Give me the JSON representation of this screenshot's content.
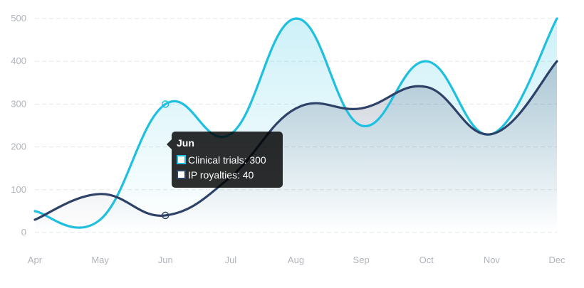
{
  "chart_data": {
    "type": "line",
    "categories": [
      "Apr",
      "May",
      "Jun",
      "Jul",
      "Aug",
      "Sep",
      "Oct",
      "Nov",
      "Dec"
    ],
    "series": [
      {
        "name": "Clinical trials",
        "values": [
          50,
          30,
          300,
          230,
          500,
          250,
          400,
          230,
          500
        ],
        "color": "#1fbfe0"
      },
      {
        "name": "IP royalties",
        "values": [
          30,
          90,
          40,
          130,
          290,
          290,
          340,
          230,
          400
        ],
        "color": "#2e4268"
      }
    ],
    "ylim": [
      0,
      500
    ],
    "yticks": [
      "0",
      "100",
      "200",
      "300",
      "400",
      "500"
    ],
    "grid": true,
    "title": "",
    "xlabel": "",
    "ylabel": ""
  },
  "tooltip": {
    "title": "Jun",
    "rows": [
      {
        "label": "Clinical trials: 300",
        "color": "#1fbfe0"
      },
      {
        "label": "IP royalties: 40",
        "color": "#2e4268"
      }
    ]
  }
}
